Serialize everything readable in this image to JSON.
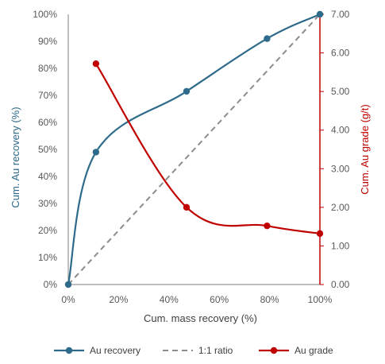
{
  "chart_data": {
    "type": "line",
    "title": "",
    "xlabel": "Cum. mass recovery (%)",
    "ylabel_left": "Cum. Au recovery (%)",
    "ylabel_right": "Cum. Au grade (g/t)",
    "xlim": [
      0,
      100
    ],
    "ylim_left": [
      0,
      100
    ],
    "ylim_right": [
      0,
      7
    ],
    "grid": false,
    "legend_position": "bottom",
    "x_ticks": [
      "0%",
      "20%",
      "40%",
      "60%",
      "80%",
      "100%"
    ],
    "y_left_ticks": [
      "0%",
      "10%",
      "20%",
      "30%",
      "40%",
      "50%",
      "60%",
      "70%",
      "80%",
      "90%",
      "100%"
    ],
    "y_right_ticks": [
      "0.00",
      "1.00",
      "2.00",
      "3.00",
      "4.00",
      "5.00",
      "6.00",
      "7.00"
    ],
    "series": [
      {
        "name": "Au recovery",
        "axis": "left",
        "color": "#2e6b8a",
        "style": "solid-markers",
        "points": [
          [
            0,
            0
          ],
          [
            11,
            49
          ],
          [
            47,
            71.5
          ],
          [
            79,
            91
          ],
          [
            100,
            100
          ]
        ]
      },
      {
        "name": "1:1 ratio",
        "axis": "left",
        "color": "#8c8c8c",
        "style": "dashed",
        "points": [
          [
            0,
            0
          ],
          [
            100,
            100
          ]
        ]
      },
      {
        "name": "Au grade",
        "axis": "right",
        "color": "#c00000",
        "style": "solid-markers",
        "points": [
          [
            11,
            5.72
          ],
          [
            47,
            2.0
          ],
          [
            79,
            1.52
          ],
          [
            100,
            1.32
          ]
        ]
      }
    ]
  },
  "colors": {
    "left_axis": "#2e6b8a",
    "right_axis": "#c00000",
    "axis_line": "#7f7f7f"
  }
}
